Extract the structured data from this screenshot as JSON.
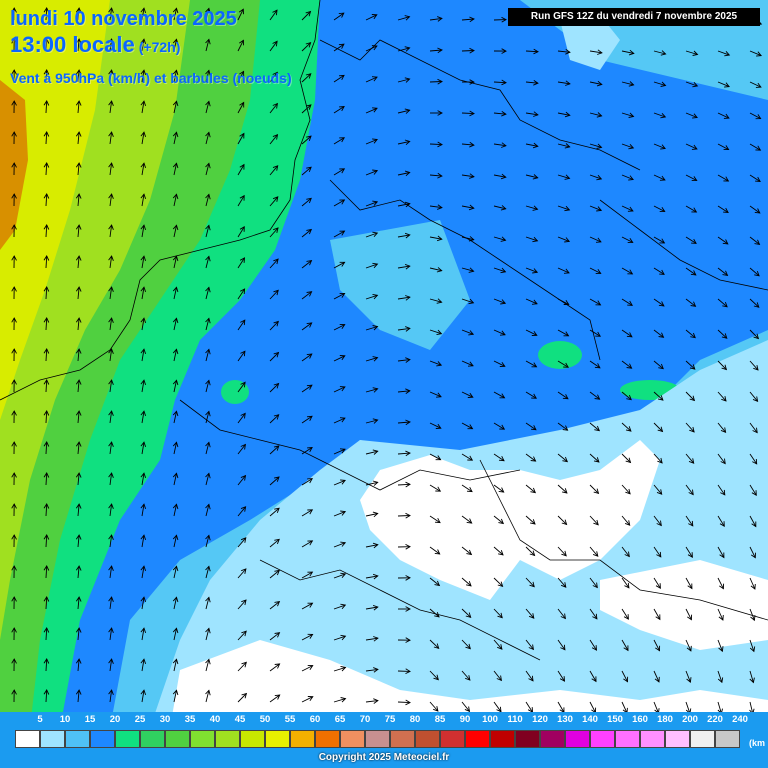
{
  "header": {
    "date": "lundi 10 novembre 2025",
    "time": "13:00 locale",
    "offset": "(+72h)",
    "subtitle": "Vent à 950hPa (km/h) et barbules (noeuds)",
    "run_info": "Run GFS 12Z du vendredi 7 novembre 2025"
  },
  "legend": {
    "unit": "(km",
    "labels": [
      "5",
      "10",
      "15",
      "20",
      "25",
      "30",
      "35",
      "40",
      "45",
      "50",
      "55",
      "60",
      "65",
      "70",
      "75",
      "80",
      "85",
      "90",
      "100",
      "110",
      "120",
      "130",
      "140",
      "150",
      "160",
      "180",
      "200",
      "220",
      "240"
    ],
    "colors": [
      "#ffffff",
      "#9fe4ff",
      "#4fc1f6",
      "#1e88ff",
      "#10e080",
      "#30d060",
      "#50d040",
      "#80e030",
      "#a0e020",
      "#c8e800",
      "#e8f000",
      "#f4b000",
      "#f07000",
      "#f09060",
      "#c89090",
      "#d07050",
      "#c05030",
      "#d03030",
      "#ff0000",
      "#c00000",
      "#800020",
      "#a00060",
      "#e000e0",
      "#ff40ff",
      "#ff70ff",
      "#ff90ff",
      "#ffc0ff",
      "#f0f0f0",
      "#c8c8c8"
    ]
  },
  "map": {
    "field_colors": {
      "calm_white": "#ffffff",
      "light_blue": "#9fe4ff",
      "medium_blue": "#55c8f5",
      "deep_blue": "#1e88ff",
      "green": "#10e080",
      "lime": "#a0e020",
      "yellow": "#d8ec00",
      "orange": "#d89000"
    },
    "barb_color": "#000000"
  },
  "footer": {
    "copyright": "Copyright 2025 Meteociel.fr"
  }
}
